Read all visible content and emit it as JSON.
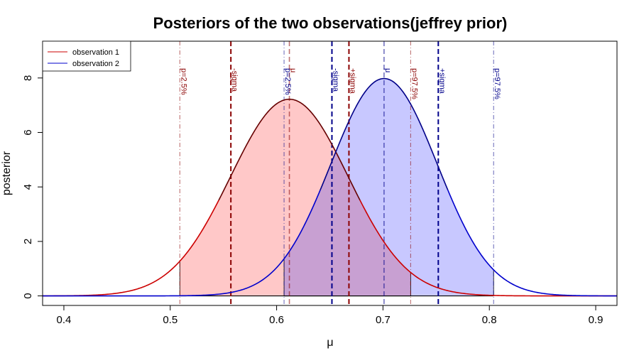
{
  "chart_data": {
    "type": "area",
    "title": "Posteriors of the two observations(jeffrey prior)",
    "xlabel": "μ",
    "ylabel": "posterior",
    "xlim": [
      0.38,
      0.92
    ],
    "ylim": [
      -0.35,
      9.35
    ],
    "xticks": [
      "0.4",
      "0.5",
      "0.6",
      "0.7",
      "0.8",
      "0.9"
    ],
    "yticks": [
      "0",
      "2",
      "4",
      "6",
      "8"
    ],
    "legend": {
      "position": "top-left",
      "entries": [
        {
          "label": "observation 1",
          "color": "#cc0000"
        },
        {
          "label": "observation 2",
          "color": "#0000cc"
        }
      ]
    },
    "series": [
      {
        "name": "observation 1",
        "mean": 0.612,
        "peak": 7.22,
        "sd": 0.0553,
        "sigma_lines": [
          0.557,
          0.668
        ],
        "interval_95": [
          0.509,
          0.726
        ],
        "line_color": "#cc0000",
        "peak_line_color": "#660000",
        "fill_color": "#ffc8c8",
        "text_color": "#8b0000"
      },
      {
        "name": "observation 2",
        "mean": 0.701,
        "peak": 7.98,
        "sd": 0.05,
        "sigma_lines": [
          0.652,
          0.752
        ],
        "interval_95": [
          0.607,
          0.804
        ],
        "line_color": "#0000cc",
        "peak_line_color": "#000088",
        "fill_color": "#c8c8ff",
        "text_color": "#00008b"
      }
    ],
    "overlap_fill_color": "#c8a0d2",
    "annotations": [
      {
        "text": "p=2.5%",
        "x": 0.509,
        "color": "#8b0000"
      },
      {
        "text": "-sigma",
        "x": 0.557,
        "color": "#8b0000"
      },
      {
        "text": "μ",
        "x": 0.612,
        "color": "#8b0000"
      },
      {
        "text": "+sigma",
        "x": 0.668,
        "color": "#8b0000"
      },
      {
        "text": "p=97.5%",
        "x": 0.726,
        "color": "#8b0000"
      },
      {
        "text": "p=2.5%",
        "x": 0.607,
        "color": "#00008b"
      },
      {
        "text": "-sigma",
        "x": 0.652,
        "color": "#00008b"
      },
      {
        "text": "μ",
        "x": 0.701,
        "color": "#00008b"
      },
      {
        "text": "+sigma",
        "x": 0.752,
        "color": "#00008b"
      },
      {
        "text": "p=97.5%",
        "x": 0.804,
        "color": "#00008b"
      }
    ]
  }
}
